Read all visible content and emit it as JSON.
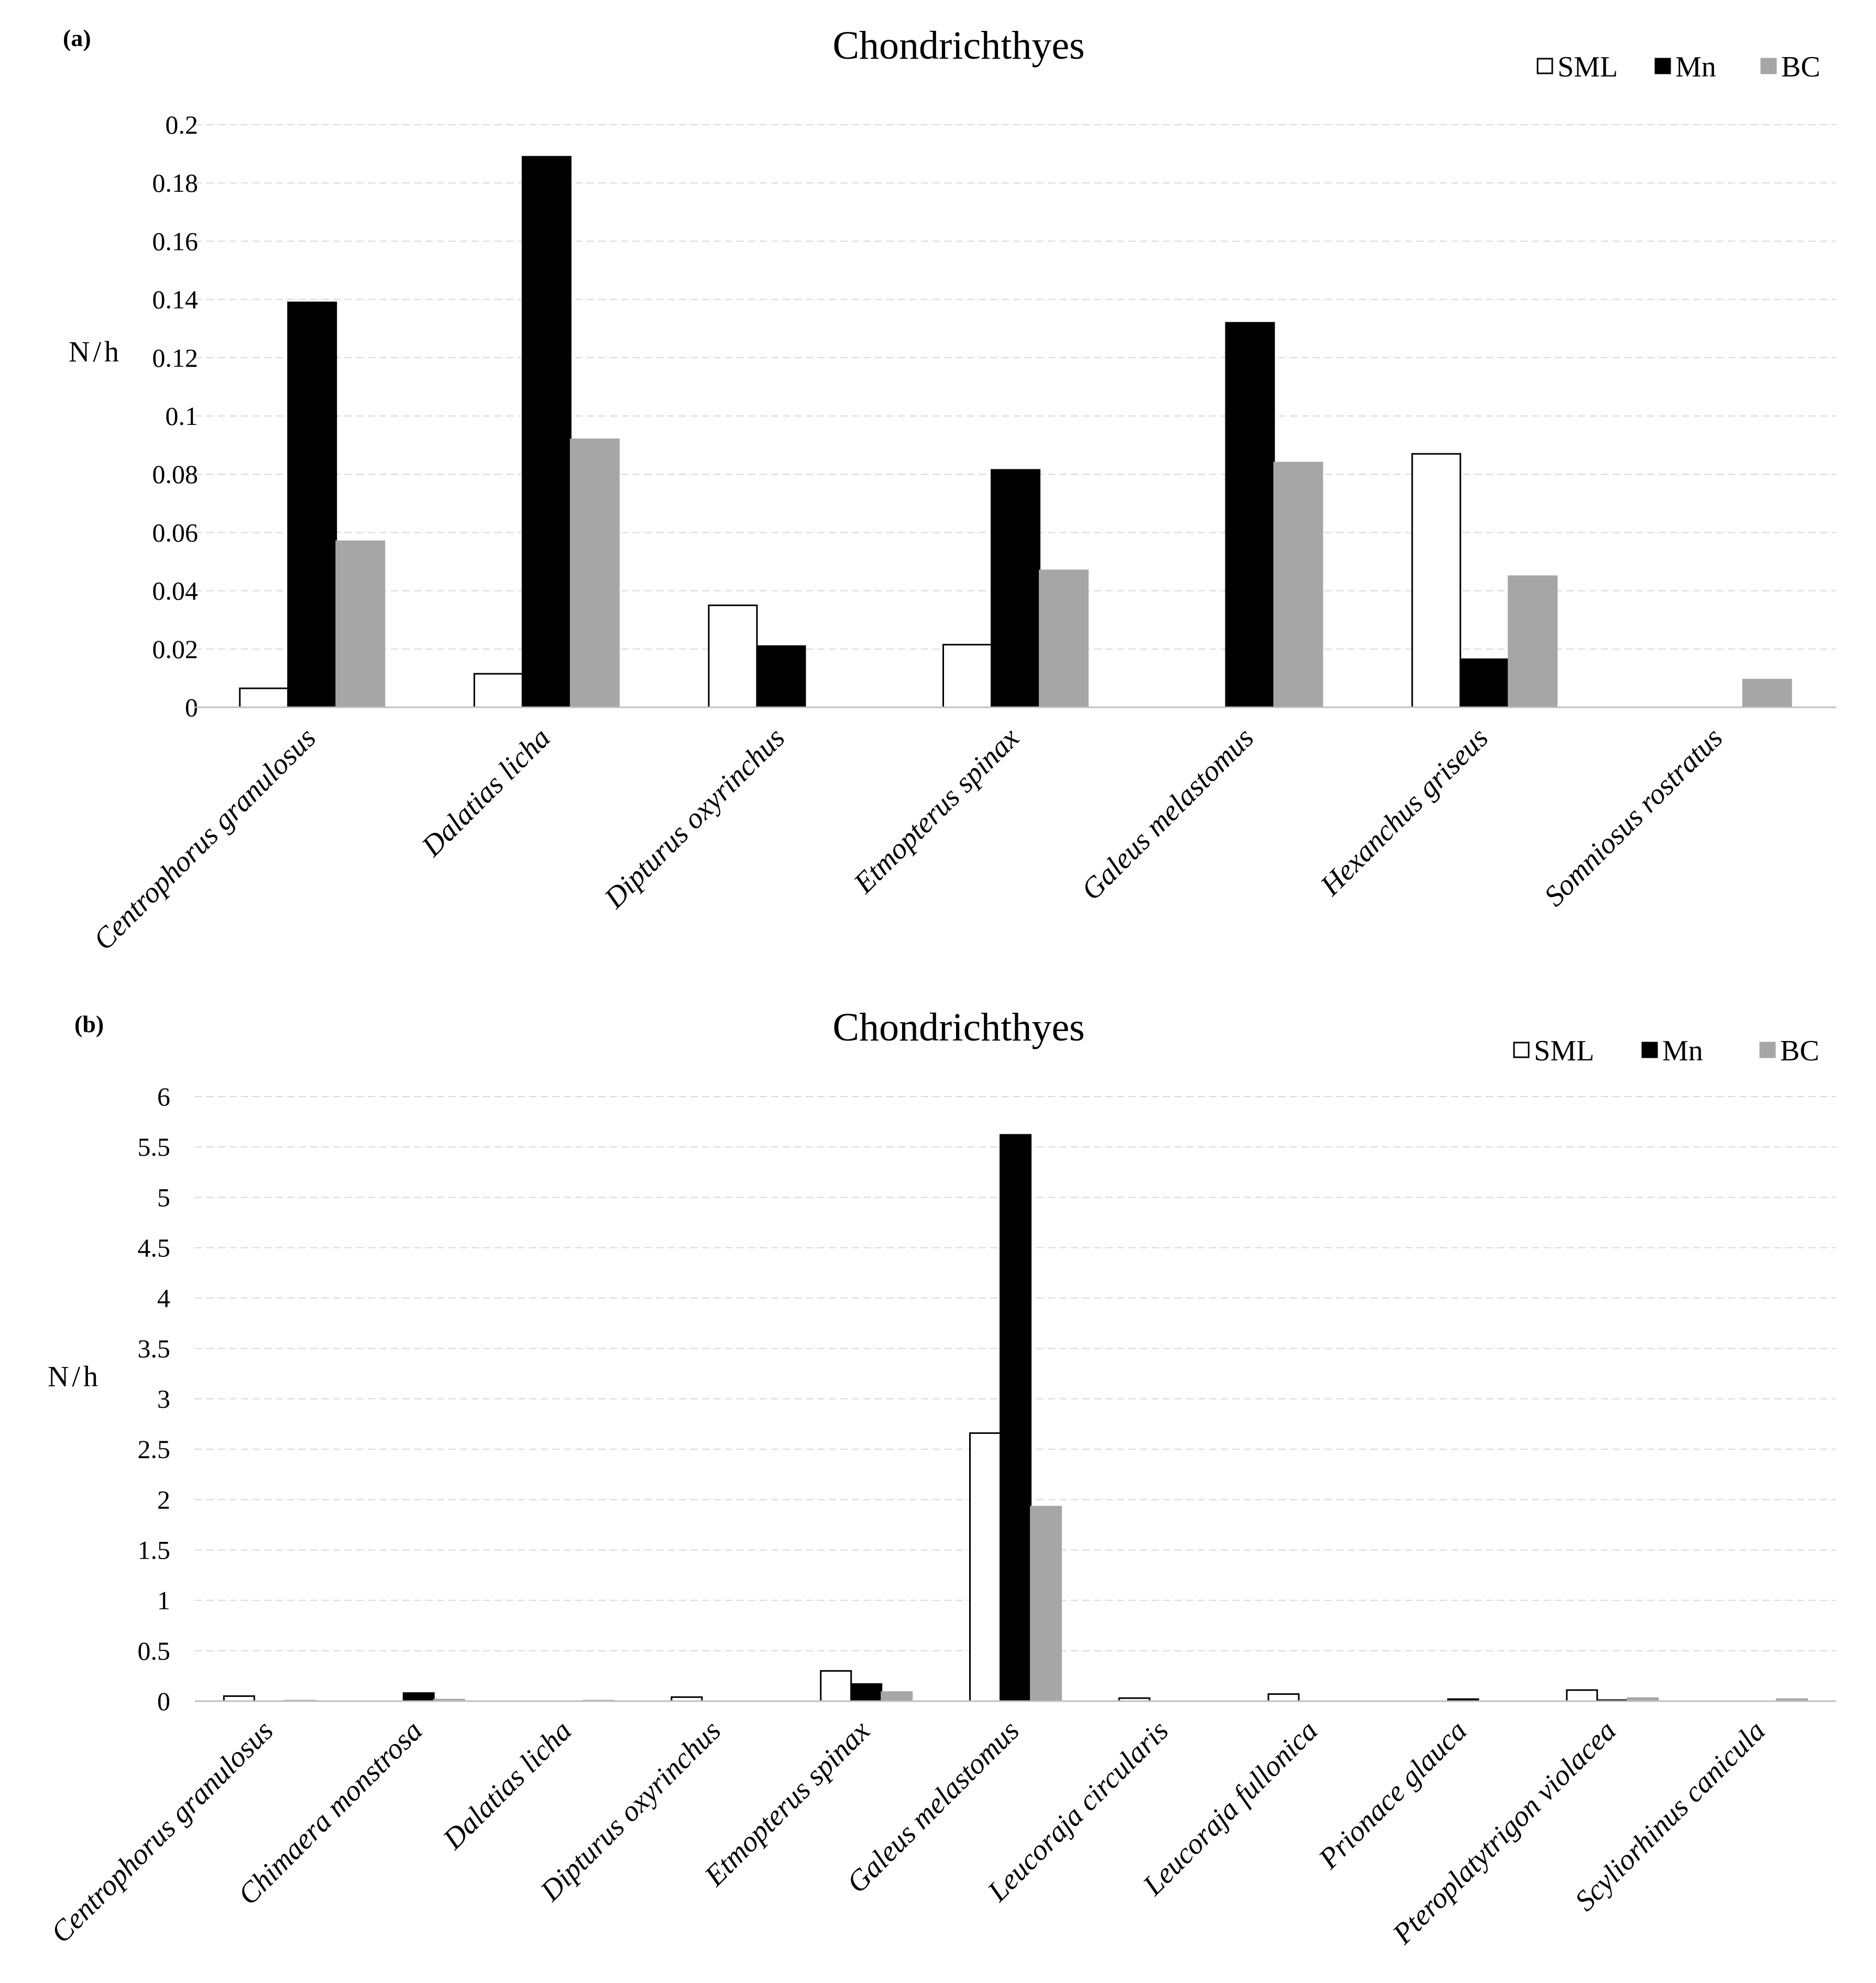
{
  "chart_data": [
    {
      "panel": "(a)",
      "type": "bar",
      "title": "Chondrichthyes",
      "xlabel": "",
      "ylabel": "N/h",
      "ylim": [
        0,
        0.2
      ],
      "yticks": [
        "0",
        "0.02",
        "0.04",
        "0.06",
        "0.08",
        "0.1",
        "0.12",
        "0.14",
        "0.16",
        "0.18",
        "0.2"
      ],
      "grid": true,
      "legend_position": "top-right",
      "categories": [
        "Centrophorus granulosus",
        "Dalatias licha",
        "Dipturus oxyrinchus",
        "Etmopterus spinax",
        "Galeus melastomus",
        "Hexanchus griseus",
        "Somniosus rostratus"
      ],
      "series": [
        {
          "name": "SML",
          "color": "#ffffff",
          "values": [
            0.0065,
            0.0115,
            0.035,
            0.0215,
            0,
            0.087,
            0
          ]
        },
        {
          "name": "Mn",
          "color": "#000000",
          "values": [
            0.139,
            0.189,
            0.021,
            0.0815,
            0.132,
            0.0165,
            0
          ]
        },
        {
          "name": "BC",
          "color": "#a6a6a6",
          "values": [
            0.057,
            0.092,
            0,
            0.047,
            0.084,
            0.045,
            0.0095
          ]
        }
      ]
    },
    {
      "panel": "(b)",
      "type": "bar",
      "title": "Chondrichthyes",
      "xlabel": "",
      "ylabel": "N/h",
      "ylim": [
        0,
        6
      ],
      "yticks": [
        "0",
        "0.5",
        "1",
        "1.5",
        "2",
        "2.5",
        "3",
        "3.5",
        "4",
        "4.5",
        "5",
        "5.5",
        "6"
      ],
      "grid": true,
      "legend_position": "top-right",
      "categories": [
        "Centrophorus granulosus",
        "Chimaera monstrosa",
        "Dalatias licha",
        "Dipturus oxyrinchus",
        "Etmopterus spinax",
        "Galeus melastomus",
        "Leucoraja circularis",
        "Leucoraja fullonica",
        "Prionace glauca",
        "Pteroplatytrigon violacea",
        "Scyliorhinus canicula"
      ],
      "series": [
        {
          "name": "SML",
          "color": "#ffffff",
          "values": [
            0.05,
            0,
            0,
            0.04,
            0.3,
            2.66,
            0.03,
            0.07,
            0,
            0.11,
            0
          ]
        },
        {
          "name": "Mn",
          "color": "#000000",
          "values": [
            0,
            0.08,
            0,
            0,
            0.17,
            5.62,
            0,
            0,
            0.02,
            0.01,
            0
          ]
        },
        {
          "name": "BC",
          "color": "#a6a6a6",
          "values": [
            0.005,
            0.015,
            0.005,
            0,
            0.09,
            1.93,
            0,
            0,
            0,
            0.03,
            0.02
          ]
        }
      ]
    }
  ]
}
